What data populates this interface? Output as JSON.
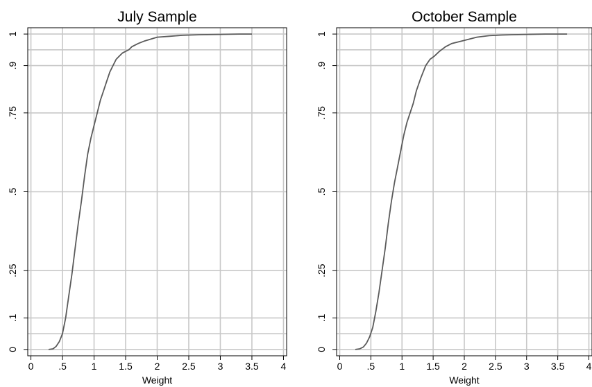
{
  "chart_data": [
    {
      "type": "line",
      "title": "July Sample",
      "xlabel": "Weight",
      "ylabel": "",
      "xlim": [
        -0.05,
        4.05
      ],
      "ylim": [
        -0.02,
        1.02
      ],
      "xticks": [
        0,
        0.5,
        1,
        1.5,
        2,
        2.5,
        3,
        3.5,
        4
      ],
      "xtick_labels": [
        "0",
        ".5",
        "1",
        "1.5",
        "2",
        "2.5",
        "3",
        "3.5",
        "4"
      ],
      "yticks": [
        0,
        0.1,
        0.25,
        0.5,
        0.75,
        0.9,
        1
      ],
      "ytick_labels": [
        "0",
        ".1",
        ".25",
        ".5",
        ".75",
        ".9",
        "1"
      ],
      "hlines": [
        0.05,
        0.95
      ],
      "grid": true,
      "series": [
        {
          "color": "#5a5a5a",
          "x": [
            0.28,
            0.35,
            0.4,
            0.45,
            0.5,
            0.55,
            0.6,
            0.65,
            0.7,
            0.75,
            0.8,
            0.85,
            0.9,
            0.95,
            1.0,
            1.05,
            1.1,
            1.15,
            1.2,
            1.25,
            1.3,
            1.35,
            1.4,
            1.45,
            1.5,
            1.55,
            1.6,
            1.7,
            1.8,
            1.9,
            2.0,
            2.2,
            2.4,
            2.7,
            3.0,
            3.3,
            3.5
          ],
          "y": [
            0.0,
            0.002,
            0.01,
            0.025,
            0.05,
            0.1,
            0.17,
            0.24,
            0.32,
            0.4,
            0.47,
            0.55,
            0.62,
            0.67,
            0.71,
            0.75,
            0.79,
            0.82,
            0.85,
            0.88,
            0.9,
            0.92,
            0.93,
            0.94,
            0.945,
            0.95,
            0.96,
            0.97,
            0.978,
            0.984,
            0.99,
            0.993,
            0.996,
            0.998,
            0.999,
            1.0,
            1.0
          ]
        }
      ]
    },
    {
      "type": "line",
      "title": "October Sample",
      "xlabel": "Weight",
      "ylabel": "",
      "xlim": [
        -0.05,
        4.05
      ],
      "ylim": [
        -0.02,
        1.02
      ],
      "xticks": [
        0,
        0.5,
        1,
        1.5,
        2,
        2.5,
        3,
        3.5,
        4
      ],
      "xtick_labels": [
        "0",
        ".5",
        "1",
        "1.5",
        "2",
        "2.5",
        "3",
        "3.5",
        "4"
      ],
      "yticks": [
        0,
        0.1,
        0.25,
        0.5,
        0.75,
        0.9,
        1
      ],
      "ytick_labels": [
        "0",
        ".1",
        ".25",
        ".5",
        ".75",
        ".9",
        "1"
      ],
      "hlines": [
        0.05,
        0.95
      ],
      "grid": true,
      "series": [
        {
          "color": "#5a5a5a",
          "x": [
            0.25,
            0.32,
            0.38,
            0.43,
            0.48,
            0.53,
            0.58,
            0.63,
            0.68,
            0.73,
            0.78,
            0.83,
            0.88,
            0.93,
            0.98,
            1.03,
            1.08,
            1.13,
            1.18,
            1.23,
            1.3,
            1.38,
            1.45,
            1.52,
            1.6,
            1.7,
            1.8,
            1.9,
            2.0,
            2.2,
            2.4,
            2.6,
            2.8,
            3.0,
            3.3,
            3.65
          ],
          "y": [
            0.0,
            0.002,
            0.008,
            0.02,
            0.04,
            0.07,
            0.12,
            0.18,
            0.25,
            0.32,
            0.4,
            0.47,
            0.53,
            0.58,
            0.63,
            0.68,
            0.72,
            0.75,
            0.78,
            0.82,
            0.86,
            0.9,
            0.92,
            0.93,
            0.945,
            0.96,
            0.97,
            0.975,
            0.98,
            0.99,
            0.995,
            0.997,
            0.998,
            0.999,
            1.0,
            1.0
          ]
        }
      ]
    }
  ]
}
